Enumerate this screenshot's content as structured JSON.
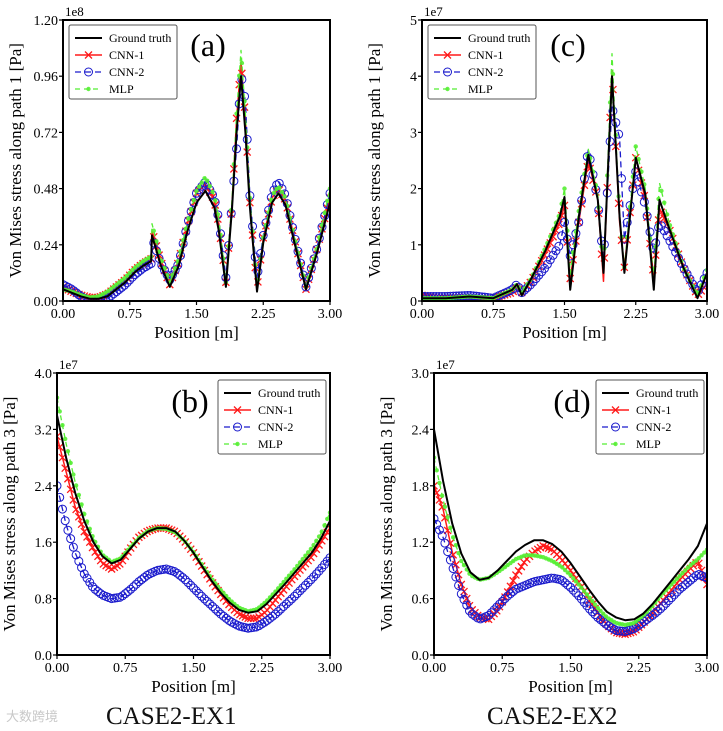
{
  "watermark": "大数跨境",
  "captions": [
    "CASE2-EX1",
    "CASE2-EX2"
  ],
  "colors": {
    "ground_truth": "#000000",
    "cnn1": "#ff1a1a",
    "cnn2": "#1a1acc",
    "mlp": "#55ee33"
  },
  "chart_data": [
    {
      "id": "a",
      "type": "line",
      "panel_label": "(a)",
      "xlabel": "Position [m]",
      "ylabel": "Von Mises stress along path 1 [Pa]",
      "scale": "1e8",
      "xlim": [
        0,
        3
      ],
      "ylim": [
        0,
        1.2
      ],
      "xticks": [
        0,
        0.75,
        1.5,
        2.25,
        3
      ],
      "xtick_labels": [
        "0.00",
        "0.75",
        "1.50",
        "2.25",
        "3.00"
      ],
      "yticks": [
        0,
        0.24,
        0.48,
        0.72,
        0.96,
        1.2
      ],
      "ytick_labels": [
        "0.00",
        "0.24",
        "0.48",
        "0.72",
        "0.96",
        "1.20"
      ],
      "legend": "top-left",
      "x": [
        0,
        0.1,
        0.2,
        0.3,
        0.4,
        0.5,
        0.6,
        0.7,
        0.8,
        0.9,
        0.99,
        1.0,
        1.1,
        1.2,
        1.3,
        1.4,
        1.5,
        1.6,
        1.7,
        1.75,
        1.83,
        1.9,
        1.95,
        2.0,
        2.05,
        2.1,
        2.18,
        2.25,
        2.35,
        2.42,
        2.5,
        2.6,
        2.73,
        2.85,
        3.0
      ],
      "series": [
        {
          "name": "Ground truth",
          "values": [
            0.05,
            0.035,
            0.02,
            0.01,
            0.01,
            0.02,
            0.05,
            0.08,
            0.12,
            0.15,
            0.17,
            0.28,
            0.15,
            0.06,
            0.15,
            0.3,
            0.42,
            0.47,
            0.4,
            0.3,
            0.06,
            0.4,
            0.72,
            0.96,
            0.72,
            0.4,
            0.04,
            0.25,
            0.42,
            0.46,
            0.41,
            0.25,
            0.05,
            0.2,
            0.42
          ]
        },
        {
          "name": "CNN-1",
          "values": [
            0.06,
            0.04,
            0.025,
            0.015,
            0.015,
            0.03,
            0.06,
            0.09,
            0.13,
            0.16,
            0.18,
            0.3,
            0.17,
            0.07,
            0.17,
            0.33,
            0.46,
            0.5,
            0.43,
            0.33,
            0.08,
            0.42,
            0.78,
            1.02,
            0.78,
            0.42,
            0.05,
            0.27,
            0.44,
            0.48,
            0.43,
            0.27,
            0.05,
            0.22,
            0.44
          ]
        },
        {
          "name": "CNN-2",
          "values": [
            0.07,
            0.05,
            0.02,
            0.0,
            0.0,
            0.01,
            0.04,
            0.07,
            0.11,
            0.14,
            0.16,
            0.27,
            0.16,
            0.09,
            0.16,
            0.33,
            0.46,
            0.51,
            0.44,
            0.35,
            0.1,
            0.42,
            0.65,
            0.97,
            0.85,
            0.45,
            0.1,
            0.28,
            0.46,
            0.51,
            0.45,
            0.28,
            0.06,
            0.22,
            0.46
          ]
        },
        {
          "name": "MLP",
          "values": [
            0.05,
            0.04,
            0.025,
            0.015,
            0.02,
            0.04,
            0.07,
            0.1,
            0.14,
            0.17,
            0.19,
            0.33,
            0.18,
            0.08,
            0.18,
            0.34,
            0.47,
            0.53,
            0.45,
            0.35,
            0.08,
            0.44,
            0.8,
            1.07,
            0.8,
            0.44,
            0.06,
            0.27,
            0.45,
            0.49,
            0.44,
            0.27,
            0.06,
            0.22,
            0.48
          ]
        }
      ]
    },
    {
      "id": "c",
      "type": "line",
      "panel_label": "(c)",
      "xlabel": "Position [m]",
      "ylabel": "Von Mises stress along path 1 [Pa]",
      "scale": "1e7",
      "xlim": [
        0,
        3
      ],
      "ylim": [
        0,
        5
      ],
      "xticks": [
        0,
        0.75,
        1.5,
        2.25,
        3
      ],
      "xtick_labels": [
        "0.00",
        "0.75",
        "1.50",
        "2.25",
        "3.00"
      ],
      "yticks": [
        0,
        1,
        2,
        3,
        4,
        5
      ],
      "ytick_labels": [
        "0",
        "1",
        "2",
        "3",
        "4",
        "5"
      ],
      "legend": "top-left",
      "x": [
        0,
        0.25,
        0.5,
        0.75,
        0.95,
        1.0,
        1.05,
        1.15,
        1.3,
        1.45,
        1.5,
        1.56,
        1.65,
        1.75,
        1.85,
        1.91,
        2.0,
        2.08,
        2.13,
        2.25,
        2.35,
        2.44,
        2.5,
        2.6,
        2.75,
        2.9,
        3.0
      ],
      "series": [
        {
          "name": "Ground truth",
          "values": [
            0.05,
            0.05,
            0.08,
            0.05,
            0.2,
            0.3,
            0.1,
            0.4,
            0.9,
            1.5,
            1.85,
            0.2,
            1.5,
            2.6,
            1.8,
            0.5,
            4.0,
            1.5,
            0.5,
            2.55,
            1.9,
            0.2,
            1.8,
            1.3,
            0.6,
            0.05,
            0.5
          ]
        },
        {
          "name": "CNN-1",
          "values": [
            0.1,
            0.05,
            0.05,
            0.05,
            0.15,
            0.25,
            0.15,
            0.35,
            0.85,
            1.4,
            1.7,
            0.4,
            1.4,
            2.5,
            1.8,
            0.35,
            4.1,
            1.4,
            0.6,
            2.55,
            1.8,
            0.4,
            1.65,
            1.3,
            0.6,
            0.1,
            0.3
          ]
        },
        {
          "name": "CNN-2",
          "values": [
            0.08,
            0.08,
            0.1,
            0.05,
            0.2,
            0.3,
            0.15,
            0.3,
            0.6,
            1.0,
            1.4,
            0.8,
            1.4,
            2.7,
            1.8,
            0.7,
            3.45,
            2.9,
            1.1,
            2.3,
            1.7,
            0.85,
            1.4,
            1.1,
            0.6,
            0.15,
            0.5
          ]
        },
        {
          "name": "MLP",
          "values": [
            0.05,
            0.05,
            0.08,
            0.05,
            0.2,
            0.3,
            0.15,
            0.4,
            0.95,
            1.55,
            2.0,
            0.5,
            1.6,
            2.7,
            1.9,
            0.5,
            4.4,
            1.5,
            0.6,
            2.75,
            2.0,
            0.4,
            2.1,
            1.4,
            0.6,
            0.1,
            0.55
          ]
        }
      ]
    },
    {
      "id": "b",
      "type": "line",
      "panel_label": "(b)",
      "xlabel": "Position [m]",
      "ylabel": "Von Mises stress along path 3 [Pa]",
      "scale": "1e7",
      "xlim": [
        0,
        3
      ],
      "ylim": [
        0,
        4
      ],
      "xticks": [
        0,
        0.75,
        1.5,
        2.25,
        3
      ],
      "xtick_labels": [
        "0.00",
        "0.75",
        "1.50",
        "2.25",
        "3.00"
      ],
      "yticks": [
        0,
        0.8,
        1.6,
        2.4,
        3.2,
        4.0
      ],
      "ytick_labels": [
        "0.0",
        "0.8",
        "1.6",
        "2.4",
        "3.2",
        "4.0"
      ],
      "legend": "top-right",
      "x": [
        0,
        0.1,
        0.2,
        0.3,
        0.4,
        0.5,
        0.6,
        0.7,
        0.8,
        0.9,
        1.0,
        1.1,
        1.2,
        1.3,
        1.4,
        1.5,
        1.6,
        1.7,
        1.8,
        1.9,
        2.0,
        2.1,
        2.2,
        2.3,
        2.4,
        2.5,
        2.6,
        2.7,
        2.8,
        2.9,
        3.0
      ],
      "series": [
        {
          "name": "Ground truth",
          "values": [
            3.4,
            2.8,
            2.3,
            1.9,
            1.6,
            1.4,
            1.3,
            1.35,
            1.5,
            1.65,
            1.75,
            1.8,
            1.8,
            1.75,
            1.62,
            1.45,
            1.25,
            1.05,
            0.88,
            0.74,
            0.64,
            0.6,
            0.62,
            0.72,
            0.86,
            1.0,
            1.15,
            1.3,
            1.45,
            1.65,
            1.9
          ]
        },
        {
          "name": "CNN-1",
          "values": [
            3.1,
            2.6,
            2.1,
            1.75,
            1.5,
            1.3,
            1.22,
            1.3,
            1.5,
            1.67,
            1.76,
            1.8,
            1.8,
            1.75,
            1.62,
            1.45,
            1.24,
            1.04,
            0.86,
            0.7,
            0.58,
            0.52,
            0.52,
            0.62,
            0.78,
            0.94,
            1.1,
            1.25,
            1.4,
            1.6,
            1.8
          ]
        },
        {
          "name": "CNN-2",
          "values": [
            2.4,
            1.85,
            1.45,
            1.15,
            0.95,
            0.85,
            0.8,
            0.82,
            0.92,
            1.04,
            1.14,
            1.2,
            1.22,
            1.18,
            1.08,
            0.95,
            0.82,
            0.7,
            0.58,
            0.48,
            0.41,
            0.38,
            0.4,
            0.48,
            0.58,
            0.7,
            0.82,
            0.95,
            1.08,
            1.22,
            1.38
          ]
        },
        {
          "name": "MLP",
          "values": [
            3.65,
            3.0,
            2.45,
            2.0,
            1.65,
            1.42,
            1.32,
            1.37,
            1.52,
            1.66,
            1.76,
            1.8,
            1.79,
            1.74,
            1.62,
            1.46,
            1.27,
            1.08,
            0.92,
            0.78,
            0.67,
            0.62,
            0.65,
            0.76,
            0.9,
            1.05,
            1.2,
            1.36,
            1.52,
            1.72,
            2.02
          ]
        }
      ]
    },
    {
      "id": "d",
      "type": "line",
      "panel_label": "(d)",
      "xlabel": "Position [m]",
      "ylabel": "Von Mises stress along path 3 [Pa]",
      "scale": "1e7",
      "xlim": [
        0,
        3
      ],
      "ylim": [
        0,
        3
      ],
      "xticks": [
        0,
        0.75,
        1.5,
        2.25,
        3
      ],
      "xtick_labels": [
        "0.00",
        "0.75",
        "1.50",
        "2.25",
        "3.00"
      ],
      "yticks": [
        0,
        0.6,
        1.2,
        1.8,
        2.4,
        3.0
      ],
      "ytick_labels": [
        "0.0",
        "0.6",
        "1.2",
        "1.8",
        "2.4",
        "3.0"
      ],
      "legend": "top-right",
      "x": [
        0,
        0.1,
        0.2,
        0.3,
        0.4,
        0.5,
        0.6,
        0.7,
        0.8,
        0.9,
        1.0,
        1.1,
        1.2,
        1.3,
        1.4,
        1.5,
        1.6,
        1.7,
        1.8,
        1.9,
        2.0,
        2.1,
        2.2,
        2.3,
        2.4,
        2.5,
        2.6,
        2.7,
        2.8,
        2.9,
        3.0
      ],
      "series": [
        {
          "name": "Ground truth",
          "values": [
            2.4,
            1.85,
            1.4,
            1.08,
            0.88,
            0.8,
            0.82,
            0.9,
            1.0,
            1.1,
            1.17,
            1.22,
            1.22,
            1.18,
            1.1,
            0.98,
            0.84,
            0.7,
            0.57,
            0.46,
            0.4,
            0.37,
            0.38,
            0.44,
            0.54,
            0.66,
            0.78,
            0.9,
            1.02,
            1.16,
            1.4
          ]
        },
        {
          "name": "CNN-1",
          "values": [
            1.8,
            1.55,
            1.1,
            0.75,
            0.5,
            0.4,
            0.38,
            0.48,
            0.65,
            0.85,
            1.0,
            1.1,
            1.16,
            1.12,
            1.02,
            0.9,
            0.76,
            0.6,
            0.45,
            0.32,
            0.24,
            0.22,
            0.25,
            0.34,
            0.45,
            0.56,
            0.68,
            0.8,
            0.9,
            1.0,
            0.75
          ]
        },
        {
          "name": "CNN-2",
          "values": [
            1.45,
            1.25,
            0.95,
            0.65,
            0.45,
            0.38,
            0.42,
            0.52,
            0.62,
            0.7,
            0.74,
            0.78,
            0.8,
            0.82,
            0.8,
            0.72,
            0.62,
            0.5,
            0.4,
            0.32,
            0.26,
            0.25,
            0.28,
            0.35,
            0.42,
            0.5,
            0.6,
            0.7,
            0.78,
            0.86,
            0.82
          ]
        },
        {
          "name": "MLP",
          "values": [
            2.1,
            1.65,
            1.28,
            1.0,
            0.85,
            0.8,
            0.82,
            0.88,
            0.95,
            1.02,
            1.06,
            1.06,
            1.04,
            1.0,
            0.94,
            0.85,
            0.74,
            0.62,
            0.5,
            0.4,
            0.34,
            0.32,
            0.34,
            0.42,
            0.52,
            0.64,
            0.74,
            0.84,
            0.94,
            1.02,
            1.12
          ]
        }
      ]
    }
  ]
}
